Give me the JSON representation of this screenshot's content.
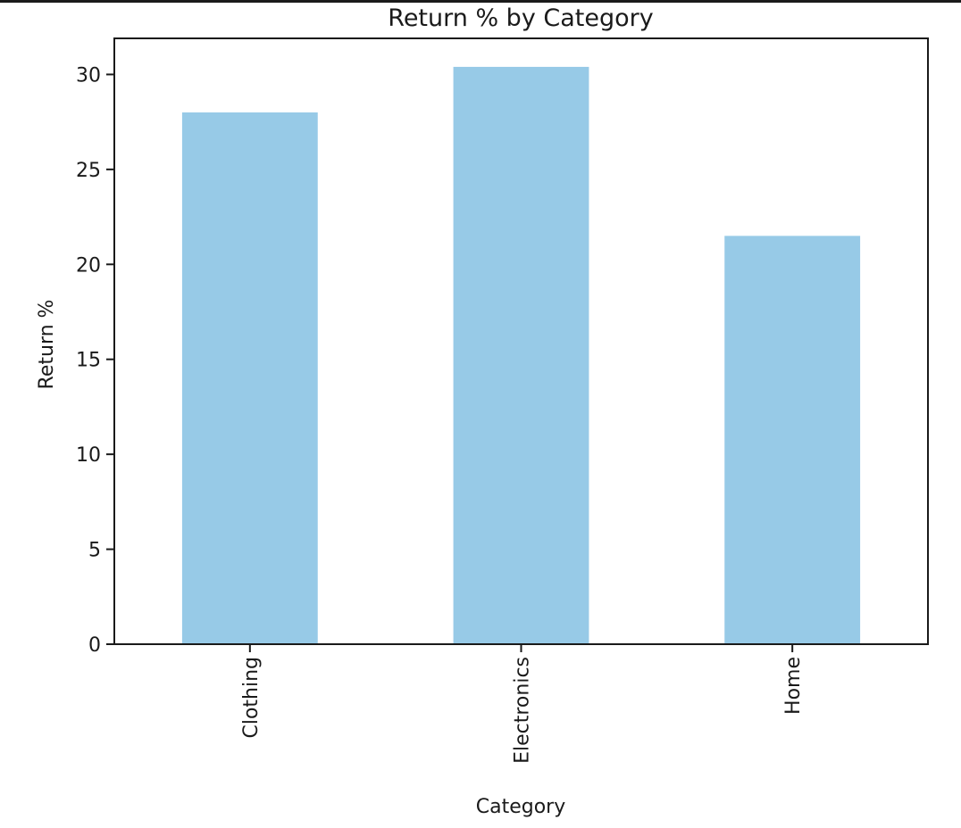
{
  "chart_data": {
    "type": "bar",
    "title": "Return % by Category",
    "xlabel": "Category",
    "ylabel": "Return %",
    "categories": [
      "Clothing",
      "Electronics",
      "Home"
    ],
    "values": [
      28.0,
      30.4,
      21.5
    ],
    "ylim": [
      0,
      31.9
    ],
    "yticks": [
      "0",
      "5",
      "10",
      "15",
      "20",
      "25",
      "30"
    ],
    "bar_color": "#97cae7",
    "grid": false,
    "legend": "none"
  }
}
